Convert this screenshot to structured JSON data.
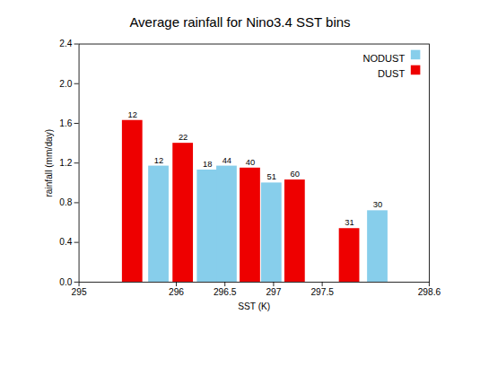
{
  "chart_data": {
    "type": "bar",
    "title": "Average rainfall for Nino3.4 SST bins",
    "xlabel": "SST (K)",
    "ylabel": "rainfall (mm/day)",
    "x": [
      295.55,
      295.82,
      296.07,
      296.32,
      296.52,
      296.76,
      296.98,
      297.22,
      297.78,
      298.07
    ],
    "series": [
      {
        "name": "NODUST",
        "color": "#87CEEB",
        "values": [
          null,
          1.17,
          null,
          1.13,
          1.17,
          null,
          1.0,
          null,
          null,
          0.72
        ],
        "counts": [
          null,
          12,
          null,
          18,
          44,
          null,
          51,
          null,
          null,
          30
        ]
      },
      {
        "name": "DUST",
        "color": "#ee0000",
        "values": [
          1.63,
          null,
          1.4,
          null,
          null,
          1.15,
          null,
          1.03,
          0.54,
          null
        ],
        "counts": [
          12,
          null,
          22,
          null,
          null,
          40,
          null,
          60,
          31,
          null
        ]
      }
    ],
    "xlim": [
      295,
      298.6
    ],
    "ylim": [
      0,
      2.4
    ],
    "xticks": [
      295,
      296,
      296.5,
      297,
      297.5,
      298.6
    ],
    "yticks": [
      {
        "value": 0,
        "label": "0.0"
      },
      0.4,
      0.8,
      1.2,
      1.6,
      {
        "value": 2,
        "label": "2.0"
      },
      2.4
    ],
    "legend": "upper right",
    "grid": false
  }
}
